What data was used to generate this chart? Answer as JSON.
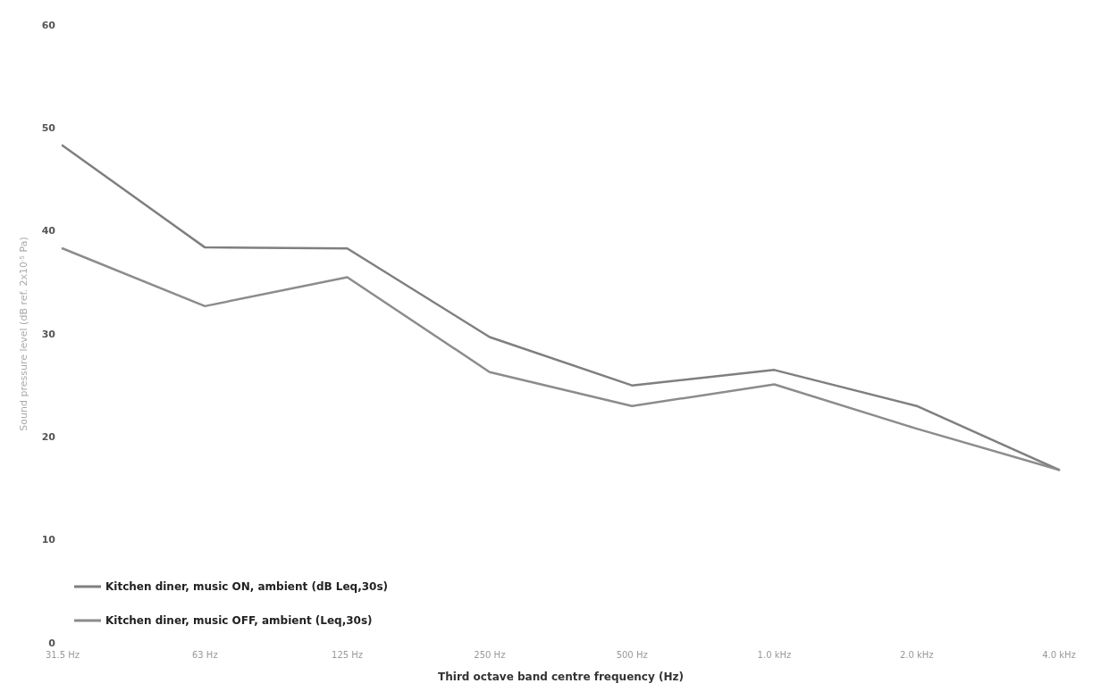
{
  "chart_data": {
    "type": "line",
    "xlabel": "Third octave band centre frequency (Hz)",
    "ylabel": "Sound pressure level (dB ref. 2x10$^{-5}$ Pa)",
    "categories": [
      "31.5 Hz",
      "63 Hz",
      "125 Hz",
      "250 Hz",
      "500 Hz",
      "1.0 kHz",
      "2.0 kHz",
      "4.0 kHz"
    ],
    "series": [
      {
        "name": "Kitchen diner, music ON, ambient (dB Leq,30s)",
        "color": "#7f7f7f",
        "values": [
          48.3,
          38.4,
          38.3,
          29.7,
          25.0,
          26.5,
          23.0,
          16.8
        ]
      },
      {
        "name": "Kitchen diner, music OFF, ambient (Leq,30s)",
        "color": "#8c8c8c",
        "values": [
          38.3,
          32.7,
          35.5,
          26.3,
          23.0,
          25.1,
          20.8,
          16.8
        ]
      }
    ],
    "ylim": [
      0,
      60
    ],
    "yticks": [
      0,
      10,
      20,
      30,
      40,
      50,
      60
    ],
    "grid": false,
    "legend": "bottom left",
    "marker": "none",
    "line_style": "solid"
  }
}
